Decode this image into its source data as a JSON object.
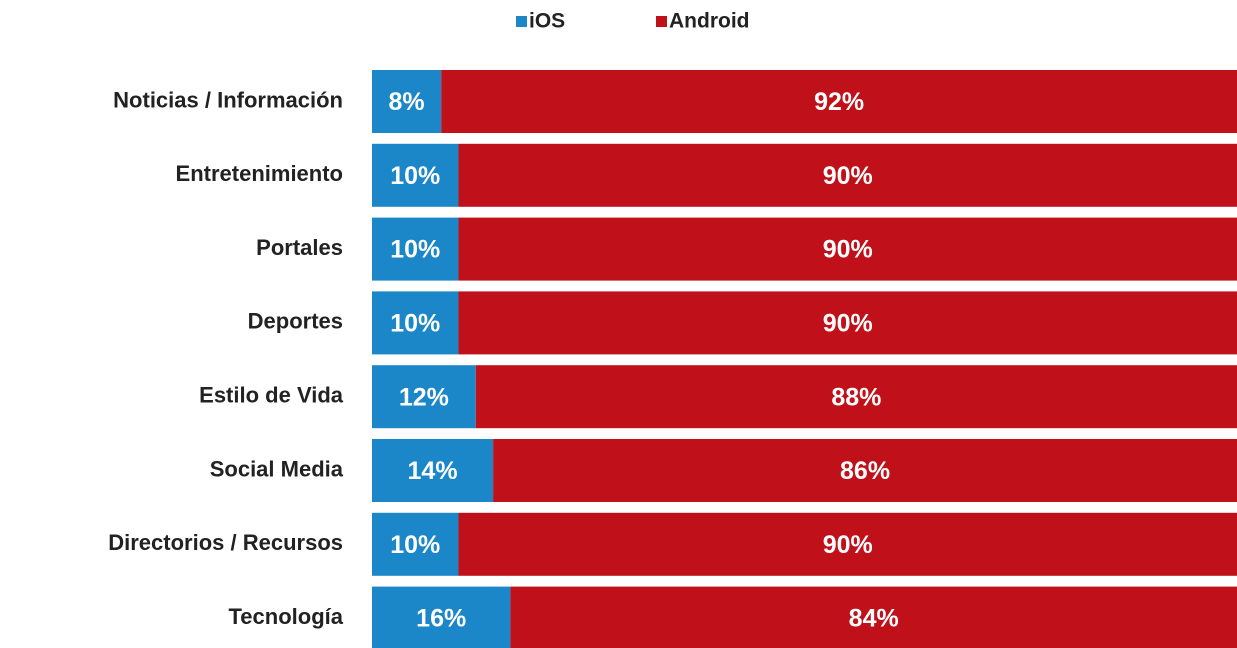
{
  "chart_data": {
    "type": "stacked_bar_horizontal",
    "categories": [
      "Noticias / Información",
      "Entretenimiento",
      "Portales",
      "Deportes",
      "Estilo de Vida",
      "Social Media",
      "Directorios / Recursos",
      "Tecnología"
    ],
    "series": [
      {
        "name": "iOS",
        "color": "#1b87c8",
        "values": [
          8,
          10,
          10,
          10,
          12,
          14,
          10,
          16
        ],
        "value_labels": [
          "8%",
          "10%",
          "10%",
          "10%",
          "12%",
          "14%",
          "10%",
          "16%"
        ]
      },
      {
        "name": "Android",
        "color": "#c0111a",
        "values": [
          92,
          90,
          90,
          90,
          88,
          86,
          90,
          84
        ],
        "value_labels": [
          "92%",
          "90%",
          "90%",
          "90%",
          "88%",
          "86%",
          "90%",
          "84%"
        ]
      }
    ],
    "xlim": [
      0,
      100
    ],
    "legend": "top"
  }
}
